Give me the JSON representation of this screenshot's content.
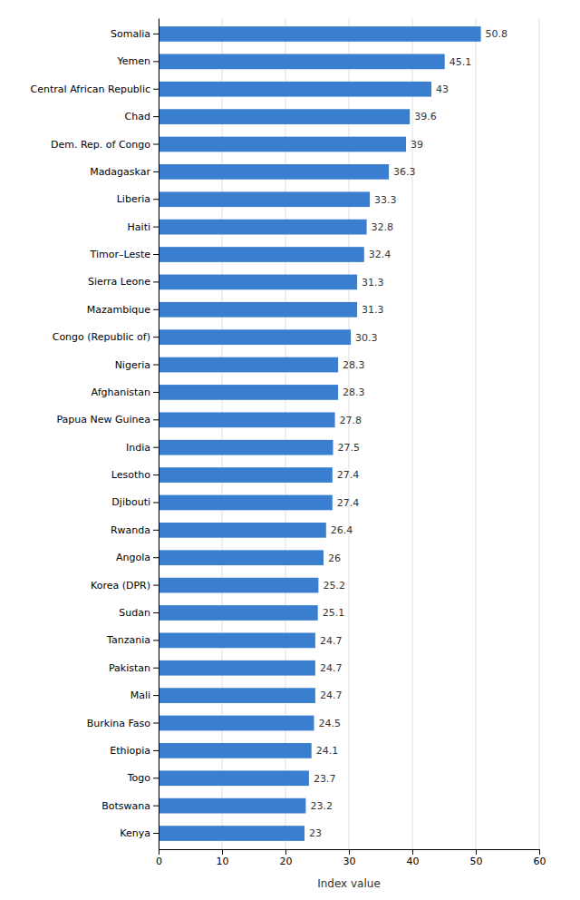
{
  "chart_data": {
    "type": "bar",
    "orientation": "horizontal",
    "categories": [
      "Somalia",
      "Yemen",
      "Central African Republic",
      "Chad",
      "Dem. Rep. of Congo",
      "Madagaskar",
      "Liberia",
      "Haiti",
      "Timor–Leste",
      "Sierra Leone",
      "Mazambique",
      "Congo (Republic of)",
      "Nigeria",
      "Afghanistan",
      "Papua New Guinea",
      "India",
      "Lesotho",
      "Djibouti",
      "Rwanda",
      "Angola",
      "Korea (DPR)",
      "Sudan",
      "Tanzania",
      "Pakistan",
      "Mali",
      "Burkina Faso",
      "Ethiopia",
      "Togo",
      "Botswana",
      "Kenya"
    ],
    "values": [
      50.8,
      45.1,
      43,
      39.6,
      39,
      36.3,
      33.3,
      32.8,
      32.4,
      31.3,
      31.3,
      30.3,
      28.3,
      28.3,
      27.8,
      27.5,
      27.4,
      27.4,
      26.4,
      26,
      25.2,
      25.1,
      24.7,
      24.7,
      24.7,
      24.5,
      24.1,
      23.7,
      23.2,
      23
    ],
    "color": "#3a7ecf",
    "xlabel": "Index value",
    "xlim": [
      0,
      60
    ],
    "xticks": [
      0,
      10,
      20,
      30,
      40,
      50,
      60
    ],
    "grid": true,
    "data_labels": true
  }
}
